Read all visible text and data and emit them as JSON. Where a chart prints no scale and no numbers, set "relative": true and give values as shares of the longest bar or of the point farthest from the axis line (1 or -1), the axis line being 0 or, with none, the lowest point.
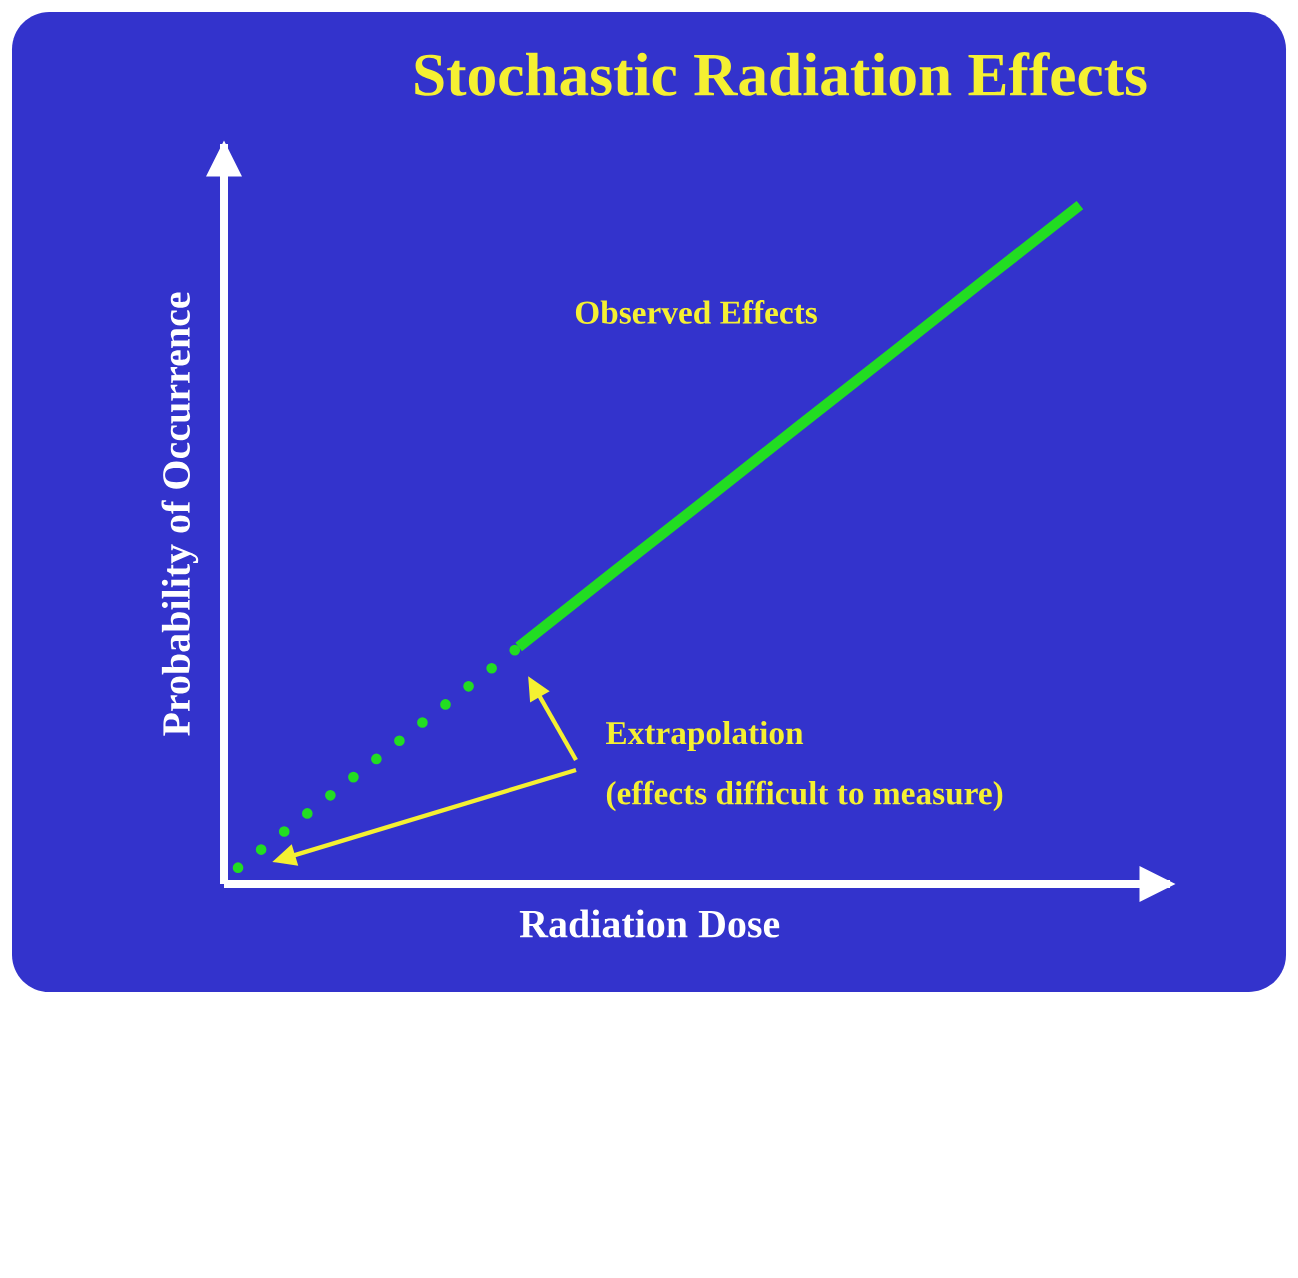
{
  "chart_data": {
    "type": "line",
    "title": "Stochastic Radiation Effects",
    "xlabel": "Radiation Dose",
    "ylabel": "Probability of Occurrence",
    "relative": true,
    "marker": "none",
    "categories": [
      null,
      null,
      null,
      null,
      null,
      null,
      null,
      null,
      null,
      null
    ],
    "series": [
      {
        "color": "#22dd22",
        "line_style": "dotted",
        "values": [
          0.024,
          0.132,
          0.241,
          0.349,
          null,
          null,
          null,
          null,
          null,
          null
        ]
      },
      {
        "color": "#22dd22",
        "line_style": "solid",
        "values": [
          null,
          null,
          null,
          0.349,
          0.458,
          0.566,
          0.675,
          0.783,
          0.892,
          1
        ]
      }
    ],
    "annotations": [
      "Observed Effects",
      "Extrapolation",
      "(effects difficult to measure)"
    ]
  }
}
